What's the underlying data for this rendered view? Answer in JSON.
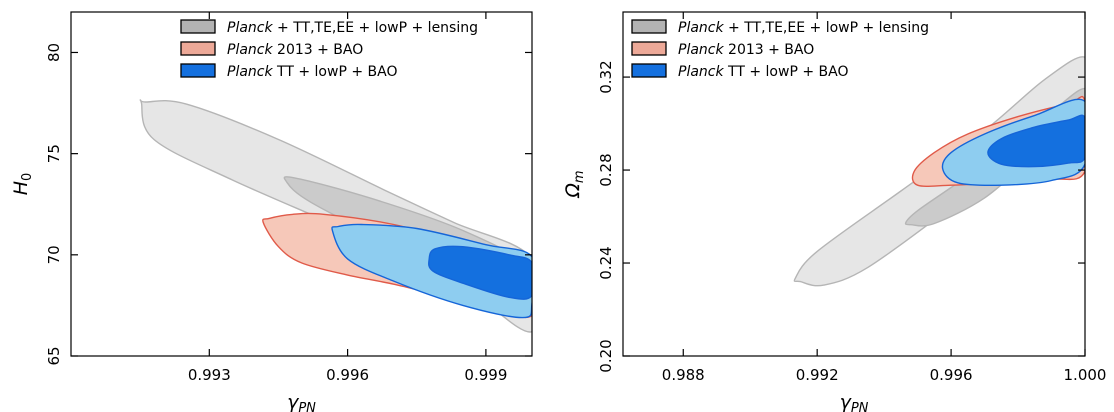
{
  "legend_label_parts": {
    "planck_word": "Planck",
    "tt_te_ee_suffix": " + TT,TE,EE + lowP + lensing",
    "bao_2013_suffix": " 2013 + BAO",
    "tt_lowp_bao_suffix": " TT + lowP + BAO"
  },
  "chart_data": [
    {
      "type": "contour",
      "panel": "left",
      "x_symbol": "γ",
      "x_subscript": "PN",
      "y_symbol": "H",
      "y_subscript": "0",
      "xlim": [
        0.99,
        1.0
      ],
      "ylim": [
        65,
        82
      ],
      "xticks": [
        0.993,
        0.996,
        0.999
      ],
      "xtick_labels": [
        "0.993",
        "0.996",
        "0.999"
      ],
      "yticks": [
        65,
        70,
        75,
        80
      ],
      "ytick_labels": [
        "65",
        "70",
        "75",
        "80"
      ],
      "legend_position": "top-right",
      "grid": false,
      "series": [
        {
          "name": "Planck + TT,TE,EE + lowP + lensing",
          "fill_outer": "#e6e6e6",
          "fill_inner": "#cbcbcb",
          "edge": "#b5b5b5",
          "outer_contour": [
            [
              0.99153,
              77.5
            ],
            [
              0.99162,
              77.55
            ],
            [
              0.9925,
              77.45
            ],
            [
              0.9945,
              75.7
            ],
            [
              0.9968,
              73.2
            ],
            [
              0.9983,
              71.6
            ],
            [
              1.0,
              69.8
            ],
            [
              1.0,
              66.2
            ],
            [
              0.9984,
              68.6
            ],
            [
              0.9962,
              71.0
            ],
            [
              0.9935,
              73.7
            ],
            [
              0.9918,
              75.7
            ]
          ],
          "inner_contour": [
            [
              0.99468,
              73.6
            ],
            [
              0.99485,
              73.8
            ],
            [
              0.9965,
              72.8
            ],
            [
              0.9985,
              71.2
            ],
            [
              1.0,
              69.3
            ],
            [
              1.0,
              67.3
            ],
            [
              0.9988,
              68.6
            ],
            [
              0.997,
              70.5
            ],
            [
              0.9952,
              72.6
            ]
          ]
        },
        {
          "name": "Planck 2013 + BAO",
          "fill_outer": "#f6c8b9",
          "fill_inner": "#eda998",
          "edge": "#e05a49",
          "outer_contour": [
            [
              0.99417,
              71.6
            ],
            [
              0.9943,
              71.8
            ],
            [
              0.9948,
              72.0
            ],
            [
              0.9955,
              72.0
            ],
            [
              0.997,
              71.5
            ],
            [
              0.9985,
              70.6
            ],
            [
              1.0,
              69.5
            ],
            [
              1.0,
              67.0
            ],
            [
              0.999,
              67.5
            ],
            [
              0.998,
              68.0
            ],
            [
              0.997,
              68.55
            ],
            [
              0.996,
              69.0
            ],
            [
              0.995,
              69.6
            ],
            [
              0.9945,
              70.4
            ]
          ],
          "inner_contour": [
            [
              0.99675,
              70.5
            ],
            [
              0.99685,
              70.7
            ],
            [
              0.9975,
              70.7
            ],
            [
              0.999,
              69.8
            ],
            [
              1.0,
              69.2
            ],
            [
              1.0,
              67.8
            ],
            [
              0.9995,
              67.8
            ],
            [
              0.9985,
              68.3
            ],
            [
              0.9975,
              68.9
            ],
            [
              0.9969,
              69.7
            ]
          ]
        },
        {
          "name": "Planck TT + lowP + BAO",
          "fill_outer": "#8ecdf0",
          "fill_inner": "#1470df",
          "edge": "#1565d8",
          "outer_contour": [
            [
              0.99567,
              71.2
            ],
            [
              0.9958,
              71.4
            ],
            [
              0.9963,
              71.5
            ],
            [
              0.9975,
              71.3
            ],
            [
              0.999,
              70.5
            ],
            [
              1.0,
              69.9
            ],
            [
              1.0,
              67.6
            ],
            [
              0.9998,
              66.9
            ],
            [
              0.9985,
              67.5
            ],
            [
              0.997,
              68.7
            ],
            [
              0.996,
              69.8
            ]
          ],
          "inner_contour": [
            [
              0.99777,
              69.8
            ],
            [
              0.9979,
              70.3
            ],
            [
              0.9985,
              70.4
            ],
            [
              0.9995,
              70.0
            ],
            [
              1.0,
              69.6
            ],
            [
              1.0,
              68.0
            ],
            [
              0.9995,
              67.9
            ],
            [
              0.9985,
              68.6
            ],
            [
              0.99785,
              69.2
            ]
          ]
        }
      ]
    },
    {
      "type": "contour",
      "panel": "right",
      "x_symbol": "γ",
      "x_subscript": "PN",
      "y_symbol": "Ω",
      "y_subscript": "m",
      "xlim": [
        0.9862,
        1.0
      ],
      "ylim": [
        0.2,
        0.348
      ],
      "xticks": [
        0.988,
        0.992,
        0.996,
        1.0
      ],
      "xtick_labels": [
        "0.988",
        "0.992",
        "0.996",
        "1.000"
      ],
      "yticks": [
        0.2,
        0.24,
        0.28,
        0.32
      ],
      "ytick_labels": [
        "0.20",
        "0.24",
        "0.28",
        "0.32"
      ],
      "legend_position": "top-left",
      "grid": false,
      "series": [
        {
          "name": "Planck + TT,TE,EE + lowP + lensing",
          "fill_outer": "#e6e6e6",
          "fill_inner": "#cbcbcb",
          "edge": "#b5b5b5",
          "outer_contour": [
            [
              0.99135,
              0.2335
            ],
            [
              0.9915,
              0.232
            ],
            [
              0.9922,
              0.2305
            ],
            [
              0.9935,
              0.238
            ],
            [
              0.996,
              0.264
            ],
            [
              0.9985,
              0.292
            ],
            [
              1.0,
              0.31
            ],
            [
              1.0,
              0.3285
            ],
            [
              0.9988,
              0.319
            ],
            [
              0.997,
              0.297
            ],
            [
              0.9945,
              0.271
            ],
            [
              0.992,
              0.245
            ]
          ],
          "inner_contour": [
            [
              0.99465,
              0.2575
            ],
            [
              0.9948,
              0.2565
            ],
            [
              0.9955,
              0.257
            ],
            [
              0.997,
              0.268
            ],
            [
              0.9985,
              0.286
            ],
            [
              1.0,
              0.301
            ],
            [
              1.0,
              0.315
            ],
            [
              0.999,
              0.305
            ],
            [
              0.9975,
              0.2875
            ],
            [
              0.996,
              0.2725
            ],
            [
              0.995,
              0.2625
            ]
          ]
        },
        {
          "name": "Planck 2013 + BAO",
          "fill_outer": "#f6c8b9",
          "fill_inner": "#eda998",
          "edge": "#e05a49",
          "outer_contour": [
            [
              0.9949,
              0.2795
            ],
            [
              0.9955,
              0.2875
            ],
            [
              0.9965,
              0.2955
            ],
            [
              0.998,
              0.303
            ],
            [
              0.9995,
              0.3085
            ],
            [
              1.0,
              0.3095
            ],
            [
              1.0,
              0.2795
            ],
            [
              0.999,
              0.276
            ],
            [
              0.9975,
              0.2745
            ],
            [
              0.996,
              0.2735
            ],
            [
              0.995,
              0.2735
            ]
          ],
          "inner_contour": [
            [
              0.9965,
              0.2875
            ],
            [
              0.9975,
              0.2955
            ],
            [
              0.999,
              0.3015
            ],
            [
              1.0,
              0.3035
            ],
            [
              1.0,
              0.2825
            ],
            [
              0.9995,
              0.281
            ],
            [
              0.998,
              0.2805
            ],
            [
              0.997,
              0.281
            ],
            [
              0.99655,
              0.2835
            ]
          ]
        },
        {
          "name": "Planck TT + lowP + BAO",
          "fill_outer": "#8ecdf0",
          "fill_inner": "#1470df",
          "edge": "#1565d8",
          "outer_contour": [
            [
              0.99575,
              0.2805
            ],
            [
              0.996,
              0.2875
            ],
            [
              0.997,
              0.2955
            ],
            [
              0.9985,
              0.3035
            ],
            [
              1.0,
              0.3095
            ],
            [
              1.0,
              0.2825
            ],
            [
              0.999,
              0.2755
            ],
            [
              0.9975,
              0.2735
            ],
            [
              0.9962,
              0.2745
            ]
          ],
          "inner_contour": [
            [
              0.9971,
              0.2875
            ],
            [
              0.9975,
              0.2935
            ],
            [
              0.9985,
              0.2985
            ],
            [
              0.9995,
              0.3015
            ],
            [
              1.0,
              0.3025
            ],
            [
              1.0,
              0.2855
            ],
            [
              0.9995,
              0.283
            ],
            [
              0.9985,
              0.2815
            ],
            [
              0.9975,
              0.2825
            ]
          ]
        }
      ]
    }
  ]
}
